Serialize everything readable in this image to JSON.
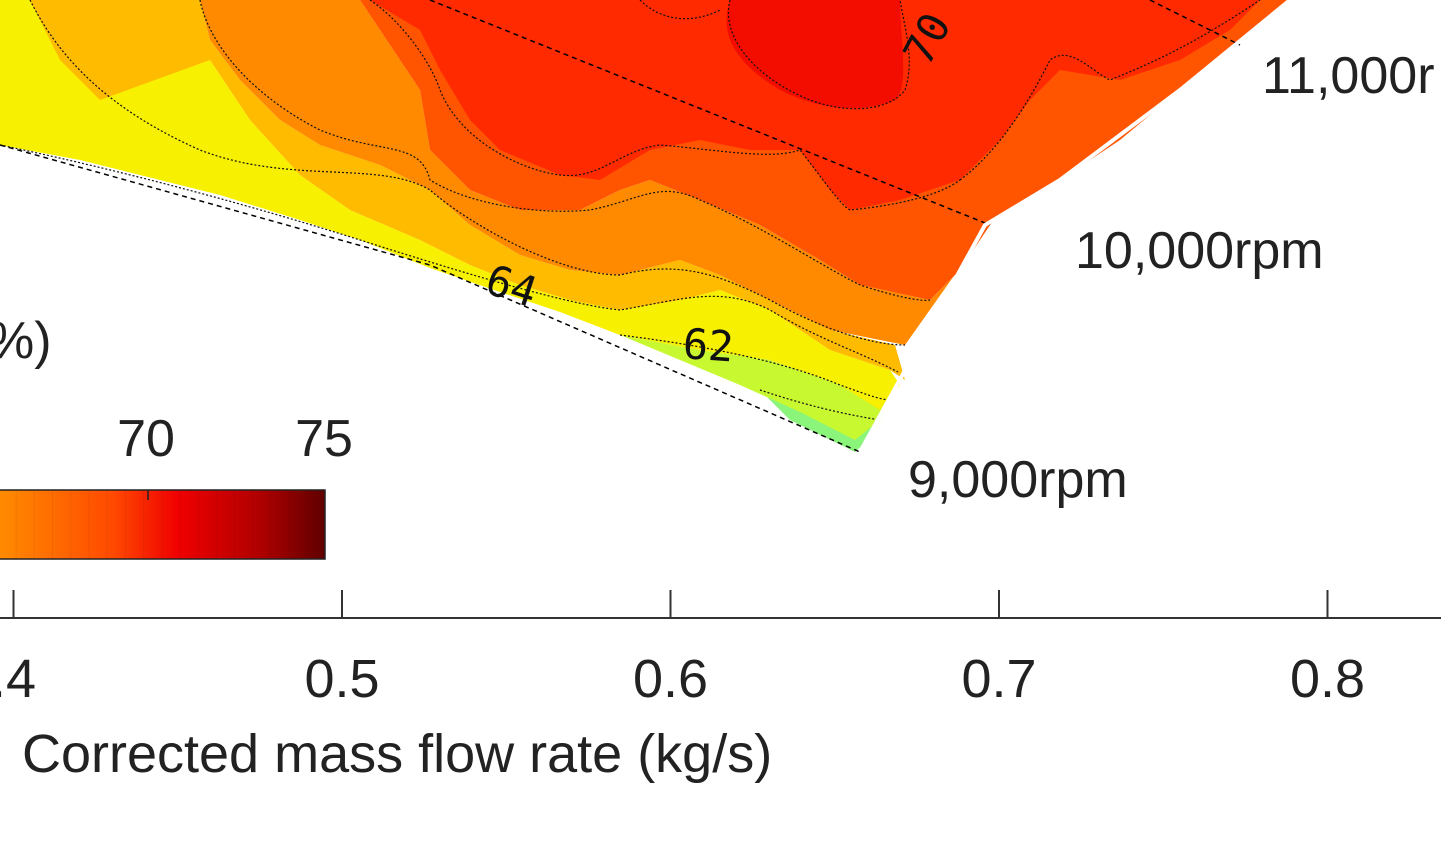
{
  "chart_data": {
    "type": "heatmap",
    "title": "",
    "xlabel": "Corrected mass flow rate (kg/s)",
    "x_ticks": [
      0.4,
      0.5,
      0.6,
      0.7,
      0.8
    ],
    "x_tick_labels": [
      ".4",
      "0.5",
      "0.6",
      "0.7",
      "0.8"
    ],
    "ylabel_fragment": "%)",
    "colorbar": {
      "tick_values": [
        70,
        75
      ],
      "tick_labels": [
        "70",
        "75"
      ],
      "colormap": "autumn-red",
      "colors": [
        "#f7f700",
        "#ffb200",
        "#ff7a00",
        "#ff3b00",
        "#f00000",
        "#b00000",
        "#6a0000"
      ]
    },
    "contour_labels": [
      {
        "text": "64",
        "value": 64
      },
      {
        "text": "62",
        "value": 62
      },
      {
        "text": "70",
        "value": 70
      }
    ],
    "speed_lines": [
      {
        "label": "9,000rpm",
        "rpm": 9000
      },
      {
        "label": "10,000rpm",
        "rpm": 10000
      },
      {
        "label": "11,000r",
        "rpm": 11000
      }
    ]
  },
  "colors": {
    "axis": "#333333",
    "dashed": "#000000",
    "yellow": "#f7f000",
    "green": "#8af57a"
  }
}
